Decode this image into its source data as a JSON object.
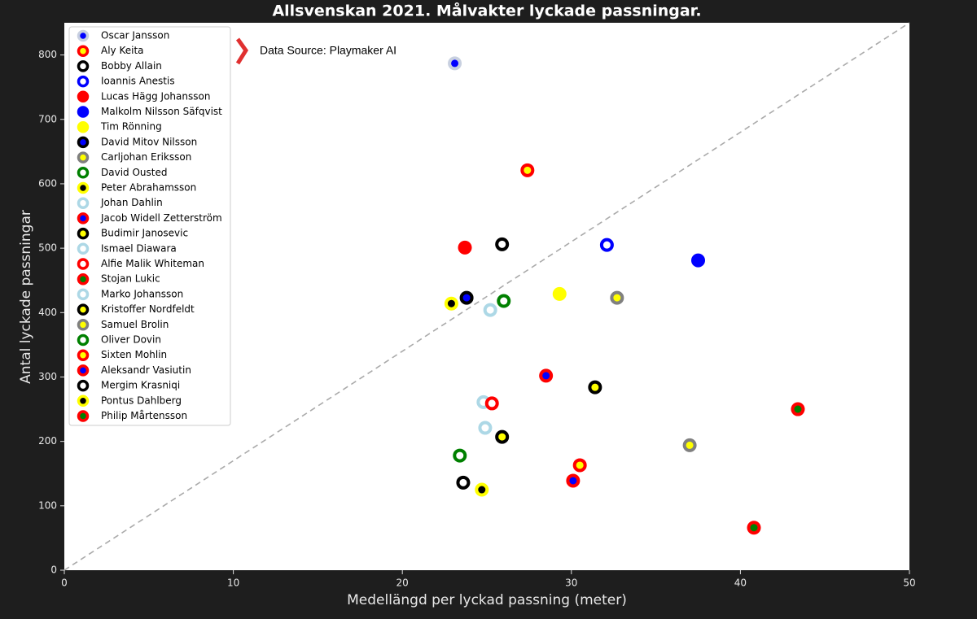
{
  "chart_data": {
    "type": "scatter",
    "title": "Allsvenskan 2021. Målvakter lyckade passningar.",
    "annotation": "Data Source: Playmaker AI",
    "x_label": "Medellängd per lyckad passning (meter)",
    "y_label": "Antal lyckade passningar",
    "xlim": [
      0,
      50
    ],
    "ylim": [
      0,
      850
    ],
    "xticks": [
      0,
      10,
      20,
      30,
      40,
      50
    ],
    "yticks": [
      0,
      100,
      200,
      300,
      400,
      500,
      600,
      700,
      800
    ],
    "legend": "upper left",
    "series": [
      {
        "name": "Oscar Jansson",
        "color": "#c8d0e0",
        "fill": "#0000ff",
        "x": [
          23.1
        ],
        "values": [
          787
        ]
      },
      {
        "name": "Aly Keita",
        "color": "#ff0000",
        "fill": "#ffff00",
        "x": [
          27.4
        ],
        "values": [
          621
        ]
      },
      {
        "name": "Bobby Allain",
        "color": "#000000",
        "fill": "#ffffff",
        "x": [
          25.9
        ],
        "values": [
          506
        ]
      },
      {
        "name": "Ioannis Anestis",
        "color": "#0000ff",
        "fill": "#ffffff",
        "x": [
          32.1
        ],
        "values": [
          505
        ]
      },
      {
        "name": "Lucas Hägg Johansson",
        "color": "#ff0000",
        "fill": "#ff0000",
        "x": [
          23.7
        ],
        "values": [
          501
        ]
      },
      {
        "name": "Malkolm Nilsson Säfqvist",
        "color": "#0000ff",
        "fill": "#0000ff",
        "x": [
          37.5
        ],
        "values": [
          481
        ]
      },
      {
        "name": "Tim Rönning",
        "color": "#ffff00",
        "fill": "#ffff00",
        "x": [
          29.3
        ],
        "values": [
          429
        ]
      },
      {
        "name": "David Mitov Nilsson",
        "color": "#000000",
        "fill": "#0000ff",
        "x": [
          23.8
        ],
        "values": [
          423
        ]
      },
      {
        "name": "Carljohan Eriksson",
        "color": "#808080",
        "fill": "#ffff00",
        "x": [
          32.7
        ],
        "values": [
          423
        ]
      },
      {
        "name": "David Ousted",
        "color": "#008000",
        "fill": "#ffffff",
        "x": [
          26.0
        ],
        "values": [
          418
        ]
      },
      {
        "name": "Peter Abrahamsson",
        "color": "#ffff00",
        "fill": "#000000",
        "x": [
          22.9
        ],
        "values": [
          414
        ]
      },
      {
        "name": "Johan Dahlin",
        "color": "#add8e6",
        "fill": "#ffffff",
        "x": [
          25.2
        ],
        "values": [
          404
        ]
      },
      {
        "name": "Jacob Widell Zetterström",
        "color": "#ff0000",
        "fill": "#0000ff",
        "x": [
          28.5
        ],
        "values": [
          302
        ]
      },
      {
        "name": "Budimir Janosevic",
        "color": "#000000",
        "fill": "#ffff00",
        "x": [
          31.4
        ],
        "values": [
          284
        ]
      },
      {
        "name": "Ismael Diawara",
        "color": "#add8e6",
        "fill": "#ffffff",
        "x": [
          24.8
        ],
        "values": [
          261
        ]
      },
      {
        "name": "Alfie Malik Whiteman",
        "color": "#ff0000",
        "fill": "#ffffff",
        "x": [
          25.3
        ],
        "values": [
          259
        ]
      },
      {
        "name": "Stojan Lukic",
        "color": "#ff0000",
        "fill": "#008000",
        "x": [
          43.4
        ],
        "values": [
          250
        ]
      },
      {
        "name": "Marko Johansson",
        "color": "#add8e6",
        "fill": "#ffffff",
        "x": [
          24.9
        ],
        "values": [
          221
        ]
      },
      {
        "name": "Kristoffer Nordfeldt",
        "color": "#000000",
        "fill": "#ffff00",
        "x": [
          25.9
        ],
        "values": [
          207
        ]
      },
      {
        "name": "Samuel Brolin",
        "color": "#808080",
        "fill": "#ffff00",
        "x": [
          37.0
        ],
        "values": [
          194
        ]
      },
      {
        "name": "Oliver Dovin",
        "color": "#008000",
        "fill": "#ffffff",
        "x": [
          23.4
        ],
        "values": [
          178
        ]
      },
      {
        "name": "Sixten Mohlin",
        "color": "#ff0000",
        "fill": "#ffff00",
        "x": [
          30.5
        ],
        "values": [
          163
        ]
      },
      {
        "name": "Aleksandr Vasiutin",
        "color": "#ff0000",
        "fill": "#0000ff",
        "x": [
          30.1
        ],
        "values": [
          139
        ]
      },
      {
        "name": "Mergim Krasniqi",
        "color": "#000000",
        "fill": "#ffffff",
        "x": [
          23.6
        ],
        "values": [
          136
        ]
      },
      {
        "name": "Pontus Dahlberg",
        "color": "#ffff00",
        "fill": "#000000",
        "x": [
          24.7
        ],
        "values": [
          125
        ]
      },
      {
        "name": "Philip Mårtensson",
        "color": "#ff0000",
        "fill": "#008000",
        "x": [
          40.8
        ],
        "values": [
          66
        ]
      }
    ]
  }
}
